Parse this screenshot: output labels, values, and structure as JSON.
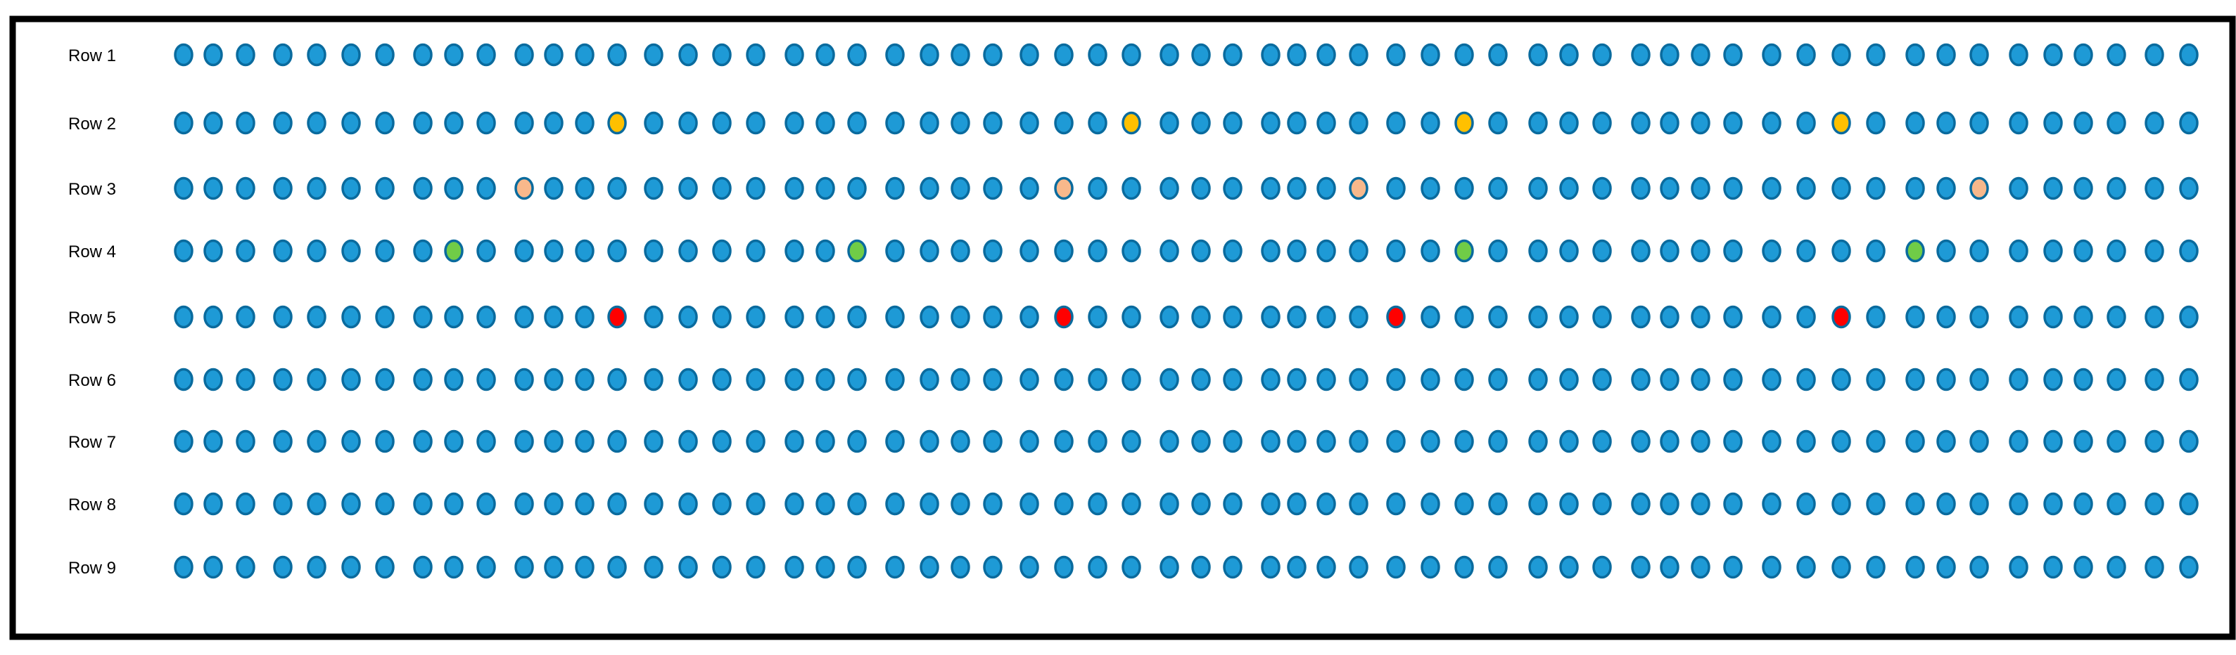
{
  "rows": [
    {
      "label": "Row 1"
    },
    {
      "label": "Row 2"
    },
    {
      "label": "Row 3"
    },
    {
      "label": "Row 4"
    },
    {
      "label": "Row 5"
    },
    {
      "label": "Row 6"
    },
    {
      "label": "Row 7"
    },
    {
      "label": "Row 8"
    },
    {
      "label": "Row 9"
    }
  ],
  "columns_per_row": 60,
  "colors": {
    "default_fill": "#1e9ad6",
    "dot_outline": "#0a6b9e",
    "yellow": "#ffc000",
    "peach": "#f8b88b",
    "green": "#70cc47",
    "red": "#ff0000",
    "frame": "#000000"
  },
  "highlighted_dots": [
    {
      "row": 2,
      "column": 14,
      "color": "yellow"
    },
    {
      "row": 2,
      "column": 29,
      "color": "yellow"
    },
    {
      "row": 2,
      "column": 39,
      "color": "yellow"
    },
    {
      "row": 2,
      "column": 50,
      "color": "yellow"
    },
    {
      "row": 3,
      "column": 11,
      "color": "peach"
    },
    {
      "row": 3,
      "column": 27,
      "color": "peach"
    },
    {
      "row": 3,
      "column": 36,
      "color": "peach"
    },
    {
      "row": 3,
      "column": 54,
      "color": "peach"
    },
    {
      "row": 4,
      "column": 9,
      "color": "green"
    },
    {
      "row": 4,
      "column": 21,
      "color": "green"
    },
    {
      "row": 4,
      "column": 39,
      "color": "green"
    },
    {
      "row": 4,
      "column": 52,
      "color": "green"
    },
    {
      "row": 5,
      "column": 14,
      "color": "red"
    },
    {
      "row": 5,
      "column": 27,
      "color": "red"
    },
    {
      "row": 5,
      "column": 37,
      "color": "red"
    },
    {
      "row": 5,
      "column": 50,
      "color": "red"
    }
  ]
}
